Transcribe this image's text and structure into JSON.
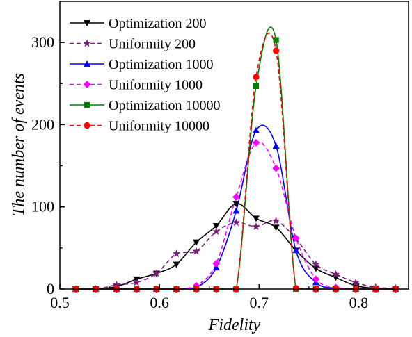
{
  "chart_data": {
    "type": "line",
    "xlabel": "Fidelity",
    "ylabel": "The number of events",
    "xlim": [
      0.5,
      0.85
    ],
    "ylim": [
      0,
      350
    ],
    "xticks": [
      0.5,
      0.6,
      0.7,
      0.8
    ],
    "yticks": [
      0,
      100,
      200,
      300
    ],
    "xtick_labels": [
      "0.5",
      "0.6",
      "0.7",
      "0.8"
    ],
    "ytick_labels": [
      "0",
      "100",
      "200",
      "300"
    ],
    "grid": false,
    "legend_position": "top-left",
    "series": [
      {
        "name": "Optimization 200",
        "color": "#000000",
        "dash": "solid",
        "marker": "triangle-down",
        "x": [
          0.516,
          0.536,
          0.557,
          0.577,
          0.597,
          0.617,
          0.637,
          0.657,
          0.677,
          0.697,
          0.717,
          0.737,
          0.757,
          0.777,
          0.797,
          0.817,
          0.837
        ],
        "y": [
          0,
          0,
          3,
          12,
          19,
          30,
          57,
          77,
          104,
          86,
          75,
          47,
          25,
          14,
          4,
          1,
          0
        ]
      },
      {
        "name": "Uniformity 200",
        "color": "#7a1d7a",
        "dash": "dashed",
        "marker": "star",
        "x": [
          0.516,
          0.536,
          0.557,
          0.577,
          0.597,
          0.617,
          0.637,
          0.657,
          0.677,
          0.697,
          0.717,
          0.737,
          0.757,
          0.777,
          0.797,
          0.817,
          0.837
        ],
        "y": [
          0,
          0,
          5,
          8,
          19,
          43,
          46,
          70,
          81,
          76,
          83,
          61,
          30,
          18,
          8,
          2,
          1
        ]
      },
      {
        "name": "Optimization 1000",
        "color": "#0000ff",
        "dash": "solid",
        "marker": "triangle-up",
        "x": [
          0.516,
          0.536,
          0.557,
          0.577,
          0.597,
          0.617,
          0.637,
          0.657,
          0.677,
          0.697,
          0.717,
          0.737,
          0.757,
          0.777,
          0.797,
          0.817,
          0.837
        ],
        "y": [
          0,
          0,
          0,
          0,
          0,
          0,
          2,
          26,
          95,
          193,
          174,
          47,
          8,
          1,
          0,
          0,
          0
        ]
      },
      {
        "name": "Uniformity 1000",
        "color": "#ff00ff",
        "dash": "dashed",
        "marker": "diamond",
        "x": [
          0.516,
          0.536,
          0.557,
          0.577,
          0.597,
          0.617,
          0.637,
          0.657,
          0.677,
          0.697,
          0.717,
          0.737,
          0.757,
          0.777,
          0.797,
          0.817,
          0.837
        ],
        "y": [
          0,
          0,
          0,
          0,
          0,
          0,
          4,
          31,
          112,
          178,
          147,
          62,
          12,
          2,
          0,
          0,
          0
        ]
      },
      {
        "name": "Optimization 10000",
        "color": "#008000",
        "dash": "solid",
        "marker": "square",
        "x": [
          0.516,
          0.536,
          0.557,
          0.577,
          0.597,
          0.617,
          0.637,
          0.657,
          0.677,
          0.697,
          0.717,
          0.737,
          0.757,
          0.777,
          0.797,
          0.817,
          0.837
        ],
        "y": [
          0,
          0,
          0,
          0,
          0,
          0,
          0,
          0,
          0,
          247,
          303,
          0,
          0,
          0,
          0,
          0,
          0
        ]
      },
      {
        "name": "Uniformity 10000",
        "color": "#ff0000",
        "dash": "dashed",
        "marker": "circle",
        "x": [
          0.516,
          0.536,
          0.557,
          0.577,
          0.597,
          0.617,
          0.637,
          0.657,
          0.677,
          0.697,
          0.717,
          0.737,
          0.757,
          0.777,
          0.797,
          0.817,
          0.837
        ],
        "y": [
          0,
          0,
          0,
          0,
          0,
          0,
          0,
          0,
          0,
          258,
          290,
          1,
          0,
          0,
          0,
          0,
          0
        ]
      }
    ]
  }
}
